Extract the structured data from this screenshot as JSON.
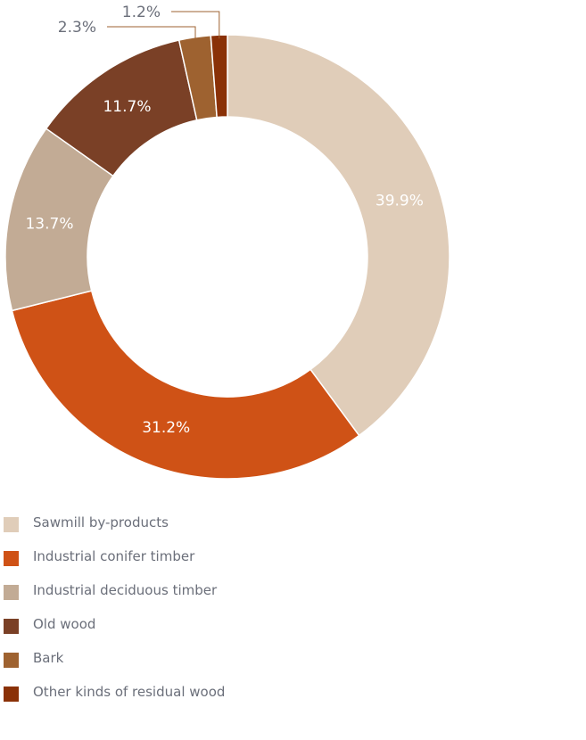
{
  "chart_data": {
    "type": "pie",
    "donut": true,
    "categories": [
      "Sawmill by-products",
      "Industrial conifer timber",
      "Industrial deciduous timber",
      "Old wood",
      "Bark",
      "Other kinds of residual wood"
    ],
    "values": [
      39.9,
      31.2,
      13.7,
      11.7,
      2.3,
      1.2
    ],
    "labels": [
      "39.9%",
      "31.2%",
      "13.7%",
      "11.7%",
      "2.3%",
      "1.2%"
    ],
    "colors": [
      "#e0cdb9",
      "#cf5216",
      "#c2ab95",
      "#7a4026",
      "#9e6230",
      "#8a3107"
    ],
    "label_colors": [
      "#ffffff",
      "#ffffff",
      "#ffffff",
      "#ffffff",
      "#6b6f7a",
      "#6b6f7a"
    ],
    "legend_position": "bottom-left"
  }
}
